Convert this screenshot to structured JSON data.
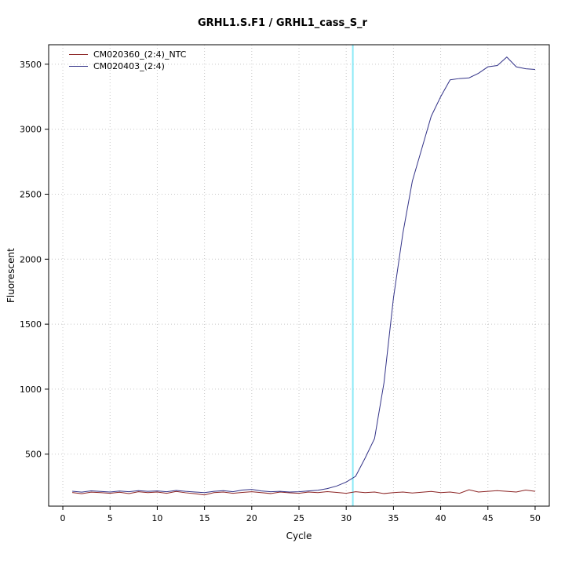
{
  "title": "GRHL1.S.F1 / GRHL1_cass_S_r",
  "chart_data": {
    "type": "line",
    "title": "GRHL1.S.F1 / GRHL1_cass_S_r",
    "xlabel": "Cycle",
    "ylabel": "Fluorescent",
    "xlim": [
      -1.5,
      51.5
    ],
    "ylim": [
      100,
      3650
    ],
    "x_ticks": [
      0,
      5,
      10,
      15,
      20,
      25,
      30,
      35,
      40,
      45,
      50
    ],
    "y_ticks": [
      500,
      1000,
      1500,
      2000,
      2500,
      3000,
      3500
    ],
    "grid": true,
    "grid_color": "#c8c8c8",
    "axis_color": "#000000",
    "threshold_line": {
      "x": 30.7,
      "color": "#8ceaf7"
    },
    "legend_position": "top-left",
    "x": [
      1,
      2,
      3,
      4,
      5,
      6,
      7,
      8,
      9,
      10,
      11,
      12,
      13,
      14,
      15,
      16,
      17,
      18,
      19,
      20,
      21,
      22,
      23,
      24,
      25,
      26,
      27,
      28,
      29,
      30,
      31,
      32,
      33,
      34,
      35,
      36,
      37,
      38,
      39,
      40,
      41,
      42,
      43,
      44,
      45,
      46,
      47,
      48,
      49,
      50
    ],
    "series": [
      {
        "name": "CM020360_(2:4)_NTC",
        "color": "#8b2323",
        "values": [
          205,
          196,
          208,
          204,
          199,
          207,
          197,
          211,
          204,
          209,
          199,
          213,
          203,
          196,
          186,
          204,
          209,
          199,
          206,
          211,
          204,
          197,
          209,
          203,
          199,
          209,
          204,
          212,
          206,
          199,
          211,
          204,
          209,
          197,
          204,
          209,
          201,
          207,
          213,
          204,
          209,
          199,
          226,
          209,
          214,
          219,
          214,
          209,
          224,
          214
        ]
      },
      {
        "name": "CM020403_(2:4)",
        "color": "#333388",
        "values": [
          215,
          208,
          218,
          213,
          209,
          216,
          211,
          219,
          214,
          217,
          211,
          221,
          214,
          209,
          204,
          214,
          219,
          211,
          224,
          229,
          217,
          211,
          214,
          209,
          211,
          217,
          222,
          235,
          255,
          285,
          330,
          470,
          620,
          1050,
          1700,
          2200,
          2600,
          2850,
          3100,
          3250,
          3380,
          3390,
          3395,
          3430,
          3480,
          3490,
          3555,
          3480,
          3465,
          3460
        ]
      }
    ]
  }
}
